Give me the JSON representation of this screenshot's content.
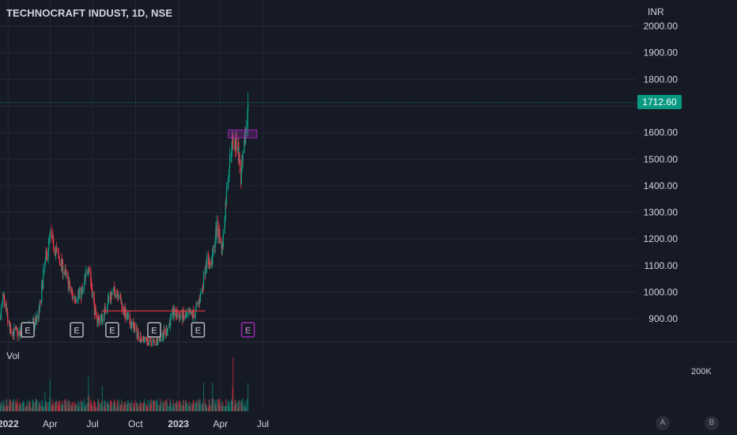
{
  "header": {
    "title": "TECHNOCRAFT INDUST, 1D, NSE",
    "currency": "INR"
  },
  "price_axis": {
    "ticks": [
      "2000.00",
      "1900.00",
      "1800.00",
      "1600.00",
      "1500.00",
      "1400.00",
      "1300.00",
      "1200.00",
      "1100.00",
      "1000.00",
      "900.00"
    ],
    "last_price_label": "1712.60"
  },
  "time_axis": {
    "ticks": [
      "2022",
      "Apr",
      "Jul",
      "Oct",
      "2023",
      "Apr",
      "Jul"
    ]
  },
  "volume_pane": {
    "label": "Vol",
    "scale_label": "200K"
  },
  "earnings_markers": [
    "E",
    "E",
    "E",
    "E",
    "E",
    "E",
    "E"
  ],
  "nav_buttons": {
    "a": "A",
    "b": "B"
  },
  "colors": {
    "background": "#161a25",
    "up": "#089981",
    "down": "#f23645",
    "support_line": "#f23645",
    "zone": "#9c27b0",
    "last_price": "#089981"
  },
  "chart_data": {
    "type": "candlestick",
    "symbol": "TECHNOCRAFT INDUST",
    "interval": "1D",
    "exchange": "NSE",
    "currency": "INR",
    "ylim": [
      820,
      2040
    ],
    "last_price": 1712.6,
    "anchors": [
      {
        "date": "2021-11-25",
        "price": 870
      },
      {
        "date": "2021-12-10",
        "price": 860
      },
      {
        "date": "2021-12-22",
        "price": 980
      },
      {
        "date": "2022-01-05",
        "price": 860
      },
      {
        "date": "2022-01-28",
        "price": 840
      },
      {
        "date": "2022-02-25",
        "price": 880
      },
      {
        "date": "2022-03-08",
        "price": 920
      },
      {
        "date": "2022-03-20",
        "price": 1100
      },
      {
        "date": "2022-04-01",
        "price": 1210
      },
      {
        "date": "2022-04-15",
        "price": 1150
      },
      {
        "date": "2022-05-05",
        "price": 1060
      },
      {
        "date": "2022-05-20",
        "price": 980
      },
      {
        "date": "2022-06-10",
        "price": 1000
      },
      {
        "date": "2022-06-22",
        "price": 1110
      },
      {
        "date": "2022-07-08",
        "price": 900
      },
      {
        "date": "2022-07-22",
        "price": 900
      },
      {
        "date": "2022-08-05",
        "price": 980
      },
      {
        "date": "2022-08-22",
        "price": 1010
      },
      {
        "date": "2022-09-10",
        "price": 910
      },
      {
        "date": "2022-09-30",
        "price": 860
      },
      {
        "date": "2022-10-15",
        "price": 820
      },
      {
        "date": "2022-11-10",
        "price": 810
      },
      {
        "date": "2022-12-05",
        "price": 850
      },
      {
        "date": "2022-12-20",
        "price": 920
      },
      {
        "date": "2023-01-15",
        "price": 905
      },
      {
        "date": "2023-02-05",
        "price": 920
      },
      {
        "date": "2023-02-20",
        "price": 1000
      },
      {
        "date": "2023-03-01",
        "price": 1120
      },
      {
        "date": "2023-03-12",
        "price": 1100
      },
      {
        "date": "2023-03-25",
        "price": 1250
      },
      {
        "date": "2023-04-05",
        "price": 1160
      },
      {
        "date": "2023-04-15",
        "price": 1400
      },
      {
        "date": "2023-04-25",
        "price": 1560
      },
      {
        "date": "2023-05-08",
        "price": 1560
      },
      {
        "date": "2023-05-15",
        "price": 1420
      },
      {
        "date": "2023-05-24",
        "price": 1580
      },
      {
        "date": "2023-05-30",
        "price": 1712.6
      }
    ],
    "volume_spikes": [
      {
        "date": "2022-03-20",
        "level": 0.7
      },
      {
        "date": "2022-04-01",
        "level": 0.5
      },
      {
        "date": "2022-06-22",
        "level": 0.55
      },
      {
        "date": "2022-07-22",
        "level": 0.4
      },
      {
        "date": "2023-02-25",
        "level": 1.0
      },
      {
        "date": "2023-03-15",
        "level": 0.45
      },
      {
        "date": "2023-04-28",
        "level": 0.85
      },
      {
        "date": "2023-05-30",
        "level": 0.45
      }
    ],
    "support_line": {
      "price": 930,
      "from": "2022-07-20",
      "to": "2023-02-28"
    },
    "resistance_zone": {
      "price_low": 1580,
      "price_high": 1610,
      "from": "2023-04-18",
      "to": "2023-06-18"
    },
    "earnings_dates": [
      "2021-11-25",
      "2022-02-12",
      "2022-05-28",
      "2022-08-12",
      "2022-11-10",
      "2023-02-12",
      "2023-05-30"
    ],
    "xlabel": "",
    "ylabel": ""
  }
}
